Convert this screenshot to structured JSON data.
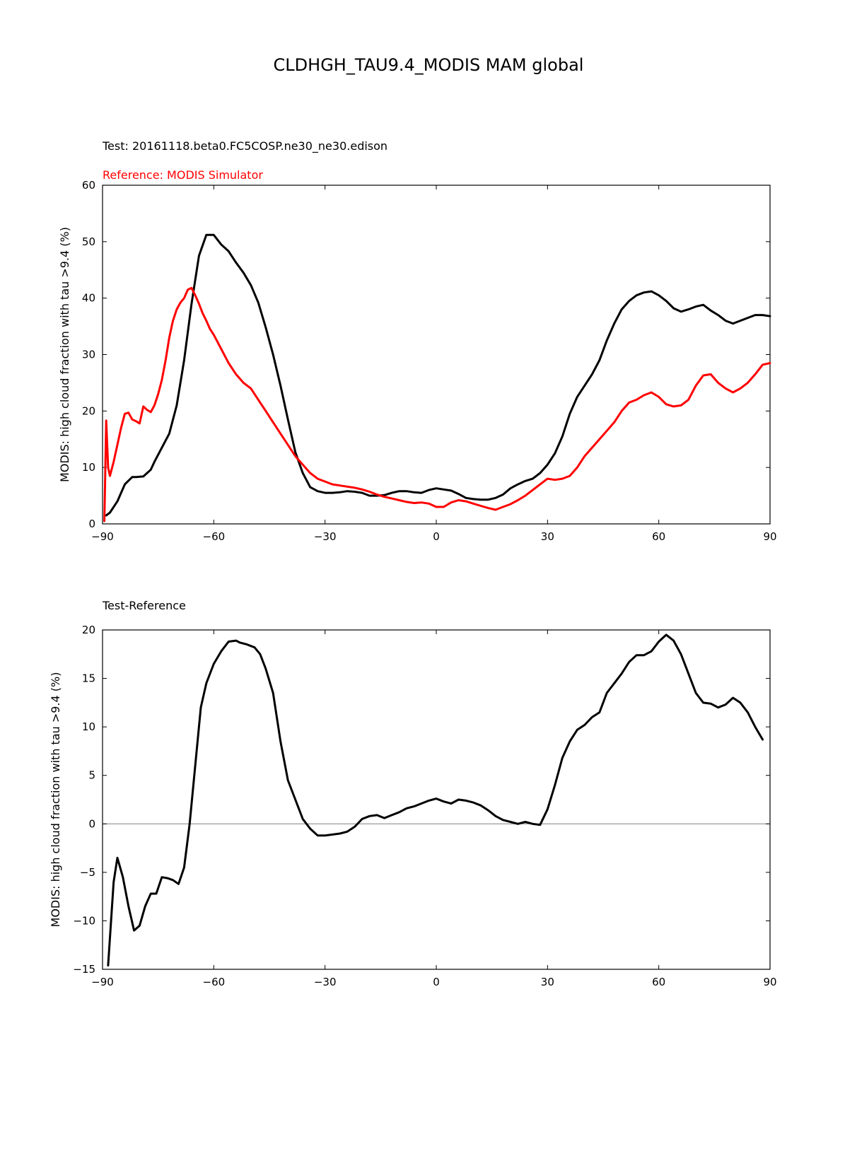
{
  "figure": {
    "title": "CLDHGH_TAU9.4_MODIS MAM global",
    "test_label": "Test: 20161118.beta0.FC5COSP.ne30_ne30.edison",
    "reference_label": "Reference: MODIS Simulator",
    "diff_label": "Test-Reference",
    "colors": {
      "test": "#000000",
      "reference": "#ff0000",
      "zero_line": "#808080",
      "axes": "#000000"
    }
  },
  "chart_data": [
    {
      "type": "line",
      "title": "",
      "xlabel": "",
      "ylabel": "MODIS: high cloud fraction with tau >9.4 (%)",
      "xlim": [
        -90,
        90
      ],
      "ylim": [
        0,
        60
      ],
      "xticks": [
        "−90",
        "−60",
        "−30",
        "0",
        "30",
        "60",
        "90"
      ],
      "yticks": [
        "0",
        "10",
        "20",
        "30",
        "40",
        "50",
        "60"
      ],
      "grid": false,
      "legend": "none",
      "series": [
        {
          "key": "test",
          "color": "#000000",
          "x": [
            -89,
            -88,
            -86,
            -84,
            -82,
            -81,
            -79,
            -77,
            -76,
            -74,
            -72,
            -70,
            -68,
            -66,
            -64,
            -62,
            -60,
            -58,
            -56,
            -54,
            -52,
            -50,
            -48,
            -46,
            -44,
            -42,
            -40,
            -38,
            -36,
            -34,
            -32,
            -30,
            -28,
            -26,
            -24,
            -22,
            -20,
            -18,
            -16,
            -14,
            -12,
            -10,
            -8,
            -6,
            -4,
            -2,
            0,
            2,
            4,
            6,
            8,
            10,
            12,
            14,
            16,
            18,
            20,
            22,
            24,
            26,
            28,
            30,
            32,
            34,
            36,
            38,
            40,
            42,
            44,
            46,
            48,
            50,
            52,
            54,
            56,
            58,
            60,
            62,
            64,
            66,
            68,
            70,
            72,
            74,
            76,
            78,
            80,
            82,
            84,
            86,
            88,
            90
          ],
          "y": [
            1.5,
            2,
            4,
            7,
            8.3,
            8.3,
            8.4,
            9.6,
            11,
            13.5,
            16,
            21,
            29,
            39,
            47.5,
            51.2,
            51.2,
            49.5,
            48.3,
            46.3,
            44.5,
            42.3,
            39.2,
            34.8,
            30,
            24.5,
            18.5,
            12.7,
            9,
            6.5,
            5.8,
            5.5,
            5.5,
            5.6,
            5.8,
            5.7,
            5.5,
            5,
            5,
            5.1,
            5.5,
            5.8,
            5.8,
            5.6,
            5.5,
            6,
            6.3,
            6.1,
            5.9,
            5.3,
            4.6,
            4.4,
            4.3,
            4.3,
            4.6,
            5.2,
            6.3,
            7,
            7.6,
            8,
            9,
            10.5,
            12.5,
            15.5,
            19.5,
            22.5,
            24.5,
            26.5,
            29,
            32.5,
            35.5,
            38,
            39.5,
            40.5,
            41,
            41.2,
            40.5,
            39.5,
            38.2,
            37.6,
            38,
            38.5,
            38.8,
            37.8,
            37,
            36,
            35.5,
            36,
            36.5,
            37,
            37,
            36.8
          ]
        },
        {
          "key": "reference",
          "color": "#ff0000",
          "x": [
            -89.5,
            -89,
            -88.5,
            -88,
            -87,
            -86,
            -85,
            -84,
            -83,
            -82,
            -81,
            -80,
            -79,
            -78,
            -77,
            -76,
            -75,
            -74,
            -73,
            -72,
            -71,
            -70,
            -69,
            -68,
            -67,
            -66,
            -65,
            -64,
            -63,
            -62,
            -61,
            -60,
            -58,
            -56,
            -54,
            -52,
            -50,
            -48,
            -46,
            -44,
            -42,
            -40,
            -38,
            -36,
            -34,
            -32,
            -30,
            -28,
            -26,
            -24,
            -22,
            -20,
            -18,
            -16,
            -14,
            -12,
            -10,
            -8,
            -6,
            -4,
            -2,
            0,
            2,
            4,
            6,
            8,
            10,
            12,
            14,
            16,
            18,
            20,
            22,
            24,
            26,
            28,
            30,
            32,
            34,
            36,
            38,
            40,
            42,
            44,
            46,
            48,
            50,
            52,
            54,
            56,
            58,
            60,
            62,
            64,
            66,
            68,
            70,
            72,
            74,
            76,
            78,
            80,
            82,
            84,
            86,
            88,
            90
          ],
          "y": [
            0.5,
            18.3,
            10,
            8.5,
            11,
            14,
            17,
            19.5,
            19.7,
            18.5,
            18.2,
            17.8,
            20.8,
            20.2,
            19.8,
            21,
            23,
            25.5,
            29,
            33,
            36,
            38,
            39.2,
            40,
            41.5,
            41.8,
            40.5,
            39,
            37.3,
            36,
            34.5,
            33.5,
            31,
            28.5,
            26.5,
            25,
            24,
            22,
            20,
            18,
            16,
            14,
            12,
            10.5,
            9,
            8,
            7.5,
            7,
            6.8,
            6.6,
            6.4,
            6.1,
            5.7,
            5.2,
            4.8,
            4.5,
            4.2,
            3.9,
            3.7,
            3.8,
            3.6,
            3,
            3,
            3.8,
            4.2,
            4,
            3.6,
            3.2,
            2.8,
            2.5,
            3,
            3.5,
            4.2,
            5,
            6,
            7,
            8,
            7.8,
            8,
            8.5,
            10,
            12,
            13.5,
            15,
            16.5,
            18,
            20,
            21.5,
            22,
            22.8,
            23.3,
            22.5,
            21.2,
            20.8,
            21,
            22,
            24.5,
            26.3,
            26.5,
            25,
            24,
            23.3,
            24,
            25,
            26.5,
            28.2,
            28.5
          ]
        }
      ]
    },
    {
      "type": "line",
      "title": "",
      "xlabel": "",
      "ylabel": "MODIS: high cloud fraction with tau >9.4 (%)",
      "xlim": [
        -90,
        90
      ],
      "ylim": [
        -15,
        20
      ],
      "xticks": [
        "−90",
        "−60",
        "−30",
        "0",
        "30",
        "60",
        "90"
      ],
      "yticks": [
        "−15",
        "−10",
        "−5",
        "0",
        "5",
        "10",
        "15",
        "20"
      ],
      "zero_line": 0,
      "grid": false,
      "legend": "none",
      "series": [
        {
          "key": "diff",
          "color": "#000000",
          "x": [
            -88.5,
            -87,
            -86,
            -84.5,
            -83,
            -81.5,
            -80,
            -78.5,
            -77,
            -75.5,
            -74,
            -72.5,
            -71,
            -69.5,
            -68,
            -66.5,
            -65,
            -63.5,
            -62,
            -60,
            -58,
            -56,
            -54,
            -53,
            -51,
            -49,
            -47.5,
            -46,
            -44,
            -42,
            -40,
            -38,
            -36,
            -34,
            -32,
            -30,
            -28,
            -26,
            -24,
            -22,
            -20,
            -18,
            -16,
            -14,
            -12,
            -10,
            -8,
            -6,
            -4,
            -2,
            0,
            2,
            4,
            6,
            8,
            10,
            12,
            14,
            16,
            18,
            20,
            22,
            24,
            26,
            28,
            30,
            32,
            34,
            36,
            38,
            40,
            42,
            44,
            46,
            48,
            50,
            52,
            54,
            56,
            58,
            60,
            62,
            64,
            66,
            68,
            70,
            72,
            74,
            76,
            78,
            80,
            82,
            84,
            86,
            88
          ],
          "y": [
            -14.6,
            -6,
            -3.5,
            -5.5,
            -8.5,
            -11,
            -10.5,
            -8.5,
            -7.2,
            -7.2,
            -5.5,
            -5.6,
            -5.8,
            -6.2,
            -4.5,
            0,
            6,
            12,
            14.5,
            16.5,
            17.8,
            18.8,
            18.9,
            18.7,
            18.5,
            18.2,
            17.5,
            16,
            13.5,
            8.5,
            4.5,
            2.5,
            0.5,
            -0.5,
            -1.2,
            -1.2,
            -1.1,
            -1,
            -0.8,
            -0.3,
            0.5,
            0.8,
            0.9,
            0.6,
            0.9,
            1.2,
            1.6,
            1.8,
            2.1,
            2.4,
            2.6,
            2.3,
            2.1,
            2.5,
            2.4,
            2.2,
            1.9,
            1.4,
            0.8,
            0.4,
            0.2,
            0,
            0.2,
            0,
            -0.1,
            1.5,
            4,
            6.8,
            8.5,
            9.7,
            10.2,
            11,
            11.5,
            13.5,
            14.5,
            15.5,
            16.7,
            17.4,
            17.4,
            17.8,
            18.8,
            19.5,
            18.9,
            17.5,
            15.5,
            13.5,
            12.5,
            12.4,
            12,
            12.3,
            13,
            12.5,
            11.5,
            10,
            8.7
          ]
        }
      ]
    }
  ]
}
